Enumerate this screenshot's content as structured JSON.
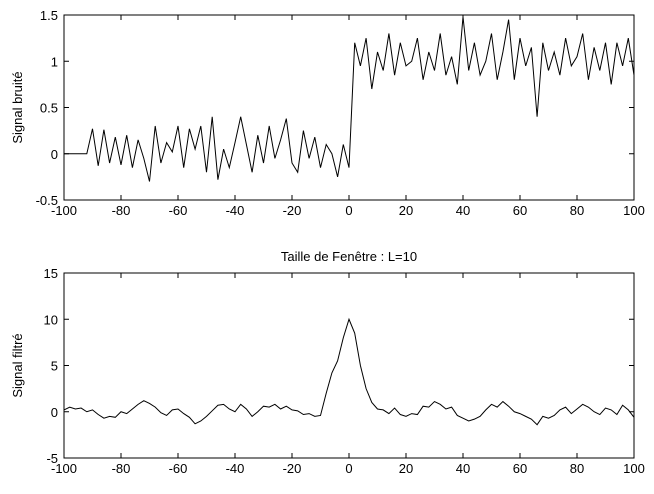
{
  "chart_data": [
    {
      "type": "line",
      "ylabel": "Signal bruité",
      "color": "#000000",
      "x": [
        -100,
        -98,
        -96,
        -94,
        -92,
        -90,
        -88,
        -86,
        -84,
        -82,
        -80,
        -78,
        -76,
        -74,
        -72,
        -70,
        -68,
        -66,
        -64,
        -62,
        -60,
        -58,
        -56,
        -54,
        -52,
        -50,
        -48,
        -46,
        -44,
        -42,
        -40,
        -38,
        -36,
        -34,
        -32,
        -30,
        -28,
        -26,
        -24,
        -22,
        -20,
        -18,
        -16,
        -14,
        -12,
        -10,
        -8,
        -6,
        -4,
        -2,
        0,
        2,
        4,
        6,
        8,
        10,
        12,
        14,
        16,
        18,
        20,
        22,
        24,
        26,
        28,
        30,
        32,
        34,
        36,
        38,
        40,
        42,
        44,
        46,
        48,
        50,
        52,
        54,
        56,
        58,
        60,
        62,
        64,
        66,
        68,
        70,
        72,
        74,
        76,
        78,
        80,
        82,
        84,
        86,
        88,
        90,
        92,
        94,
        96,
        98,
        100
      ],
      "values": [
        0,
        0,
        0,
        0,
        0,
        0.27,
        -0.13,
        0.26,
        -0.1,
        0.18,
        -0.12,
        0.2,
        -0.15,
        0.15,
        -0.05,
        -0.3,
        0.3,
        -0.1,
        0.12,
        0.02,
        0.3,
        -0.15,
        0.27,
        0.05,
        0.3,
        -0.2,
        0.4,
        -0.28,
        0.05,
        -0.15,
        0.12,
        0.4,
        0.1,
        -0.2,
        0.2,
        -0.1,
        0.3,
        -0.05,
        0.15,
        0.38,
        -0.1,
        -0.2,
        0.25,
        -0.05,
        0.18,
        -0.15,
        0.1,
        0,
        -0.25,
        0.1,
        -0.15,
        1.2,
        0.95,
        1.25,
        0.7,
        1.1,
        0.9,
        1.3,
        0.85,
        1.2,
        0.95,
        1.0,
        1.25,
        0.8,
        1.1,
        0.9,
        1.3,
        0.85,
        1.05,
        0.75,
        1.48,
        0.9,
        1.2,
        0.85,
        1.0,
        1.3,
        0.8,
        1.1,
        1.45,
        0.8,
        1.25,
        0.95,
        1.15,
        0.4,
        1.2,
        0.9,
        1.1,
        0.85,
        1.25,
        0.95,
        1.05,
        1.3,
        0.8,
        1.15,
        0.9,
        1.2,
        0.75,
        1.2,
        0.95,
        1.25,
        0.85
      ],
      "xlim": [
        -100,
        100
      ],
      "ylim": [
        -0.5,
        1.5
      ],
      "xticks": [
        -100,
        -80,
        -60,
        -40,
        -20,
        0,
        20,
        40,
        60,
        80,
        100
      ],
      "yticks": [
        -0.5,
        0,
        0.5,
        1,
        1.5
      ]
    },
    {
      "type": "line",
      "title": "Taille de Fenêtre : L=10",
      "ylabel": "Signal filtré",
      "color": "#000000",
      "x": [
        -100,
        -98,
        -96,
        -94,
        -92,
        -90,
        -88,
        -86,
        -84,
        -82,
        -80,
        -78,
        -76,
        -74,
        -72,
        -70,
        -68,
        -66,
        -64,
        -62,
        -60,
        -58,
        -56,
        -54,
        -52,
        -50,
        -48,
        -46,
        -44,
        -42,
        -40,
        -38,
        -36,
        -34,
        -32,
        -30,
        -28,
        -26,
        -24,
        -22,
        -20,
        -18,
        -16,
        -14,
        -12,
        -10,
        -8,
        -6,
        -4,
        -2,
        0,
        2,
        4,
        6,
        8,
        10,
        12,
        14,
        16,
        18,
        20,
        22,
        24,
        26,
        28,
        30,
        32,
        34,
        36,
        38,
        40,
        42,
        44,
        46,
        48,
        50,
        52,
        54,
        56,
        58,
        60,
        62,
        64,
        66,
        68,
        70,
        72,
        74,
        76,
        78,
        80,
        82,
        84,
        86,
        88,
        90,
        92,
        94,
        96,
        98,
        100
      ],
      "values": [
        0.2,
        0.5,
        0.3,
        0.4,
        0,
        0.2,
        -0.3,
        -0.7,
        -0.5,
        -0.6,
        0,
        -0.2,
        0.3,
        0.8,
        1.2,
        0.9,
        0.5,
        -0.1,
        -0.4,
        0.2,
        0.3,
        -0.2,
        -0.6,
        -1.3,
        -1.0,
        -0.5,
        0.1,
        0.7,
        0.8,
        0.3,
        0,
        0.8,
        0.3,
        -0.5,
        0,
        0.6,
        0.5,
        0.8,
        0.3,
        0.6,
        0.2,
        0.1,
        -0.3,
        -0.2,
        -0.5,
        -0.4,
        2,
        4.2,
        5.5,
        8,
        10,
        8.5,
        5,
        2.5,
        1,
        0.3,
        0.2,
        -0.2,
        0.4,
        -0.3,
        -0.5,
        -0.2,
        -0.3,
        0.6,
        0.5,
        1.1,
        0.8,
        0.3,
        0.5,
        -0.4,
        -0.7,
        -1.0,
        -0.8,
        -0.5,
        0.2,
        0.8,
        0.5,
        1.1,
        0.6,
        0,
        -0.2,
        -0.5,
        -0.8,
        -1.4,
        -0.5,
        -0.7,
        -0.4,
        0.2,
        0.5,
        -0.2,
        0.3,
        0.8,
        0.5,
        0,
        -0.3,
        0.4,
        0.2,
        -0.3,
        0.7,
        0.2,
        -0.6
      ],
      "xlim": [
        -100,
        100
      ],
      "ylim": [
        -5,
        15
      ],
      "xticks": [
        -100,
        -80,
        -60,
        -40,
        -20,
        0,
        20,
        40,
        60,
        80,
        100
      ],
      "yticks": [
        -5,
        0,
        5,
        10,
        15
      ]
    }
  ]
}
